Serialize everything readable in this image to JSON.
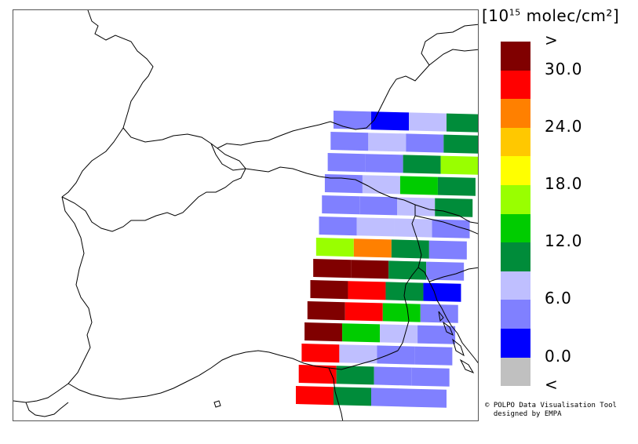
{
  "legend": {
    "unit_prefix": "[10",
    "unit_exponent": "15",
    "unit_suffix": " molec/cm²]",
    "colors": [
      "#800000",
      "#ff0000",
      "#ff8000",
      "#ffc800",
      "#ffff00",
      "#99ff00",
      "#00cc00",
      "#008c3a",
      "#bfbfff",
      "#8080ff",
      "#0000ff",
      "#c0c0c0"
    ],
    "labels": [
      {
        "text": ">",
        "row": 0
      },
      {
        "text": "30.0",
        "row": 1
      },
      {
        "text": "24.0",
        "row": 3
      },
      {
        "text": "18.0",
        "row": 5
      },
      {
        "text": "12.0",
        "row": 7
      },
      {
        "text": "6.0",
        "row": 9
      },
      {
        "text": "0.0",
        "row": 11
      },
      {
        "text": "<",
        "row": 12
      }
    ]
  },
  "credit": {
    "line1": "© POLPO Data Visualisation Tool",
    "line2": "  designed by EMPA"
  },
  "swath": {
    "class_key": [
      "<",
      "0",
      "6a",
      "6b",
      "12a",
      "12b",
      "18",
      "24",
      "30",
      ">"
    ],
    "rows": [
      [
        "6b",
        "0",
        "6a",
        "12a"
      ],
      [
        "6b",
        "6a",
        "6b",
        "12a"
      ],
      [
        "6b",
        "6b",
        "12a",
        "18"
      ],
      [
        "6b",
        "6a",
        "12b",
        "12a"
      ],
      [
        "6b",
        "6b",
        "6a",
        "12a"
      ],
      [
        "6b",
        "6a",
        "6a",
        "6b"
      ],
      [
        "18",
        "24",
        "12a",
        "6b"
      ],
      [
        ">",
        ">",
        "12a",
        "6b"
      ],
      [
        ">",
        "30",
        "12a",
        "0"
      ],
      [
        ">",
        "30",
        "12b",
        "6b"
      ],
      [
        ">",
        "12b",
        "6a",
        "6b"
      ],
      [
        "30",
        "6a",
        "6b",
        "6b"
      ],
      [
        "30",
        "12a",
        "6b",
        "6b"
      ],
      [
        "30",
        "12a",
        "6b",
        "6b"
      ]
    ]
  }
}
